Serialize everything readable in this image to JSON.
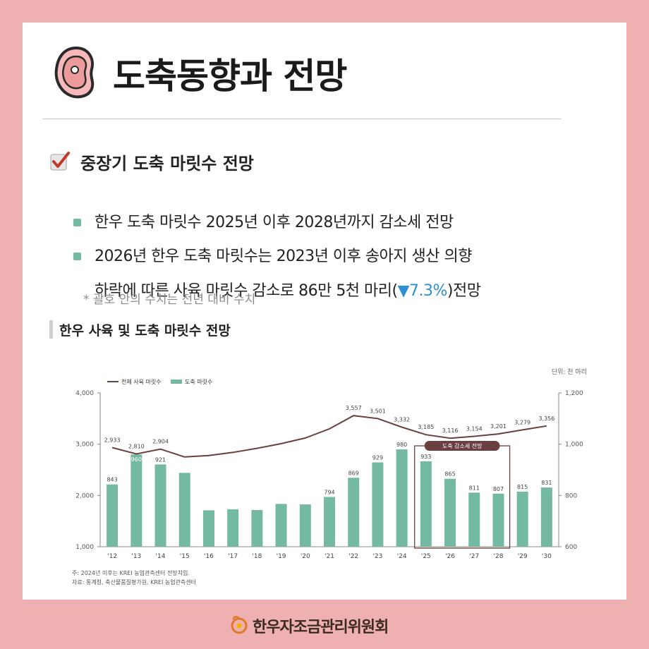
{
  "header": {
    "title": "도축동향과 전망",
    "icon": "meat-icon"
  },
  "section": {
    "title": "중장기 도축 마릿수 전망",
    "icon": "checkbox-icon"
  },
  "bullets": {
    "b1": "한우 도축 마릿수 2025년 이후 2028년까지 감소세 전망",
    "b2_line1": "2026년 한우 도축 마릿수는 2023년 이후 송아지 생산 의향",
    "b2_line2_pre": "하락에 따른 사육 마릿수 감소로 86만 5천 마리(",
    "b2_line2_pct": "▼7.3%",
    "b2_line2_post": ")전망"
  },
  "note": "* 괄호 안의 수치는 전년 대비 수치",
  "chart_title": "한우 사육 및 도축 마릿수 전망",
  "colors": {
    "background": "#eeb0b0",
    "bar": "#74b9a1",
    "line": "#6b3f3f",
    "accent_blue": "#2f8fd0",
    "bullet": "#74b9a1"
  },
  "chart_data": {
    "type": "bar",
    "unit_label": "단위: 천 마리",
    "categories": [
      "'12",
      "'13",
      "'14",
      "'15",
      "'16",
      "'17",
      "'18",
      "'19",
      "'20",
      "'21",
      "'22",
      "'23",
      "'24",
      "'25",
      "'26",
      "'27",
      "'28",
      "'29",
      "'30"
    ],
    "series": [
      {
        "name": "전체 사육 마릿수",
        "type": "line",
        "axis": "left",
        "values": [
          2933,
          2810,
          2904,
          2750,
          2780,
          2840,
          2920,
          3010,
          3120,
          3300,
          3557,
          3501,
          3332,
          3185,
          3116,
          3154,
          3201,
          3279,
          3356
        ],
        "labels": [
          "2,933",
          "2,810",
          "2,904",
          "",
          "",
          "",
          "",
          "",
          "",
          "",
          "3,557",
          "3,501",
          "3,332",
          "3,185",
          "3,116",
          "3,154",
          "3,201",
          "3,279",
          "3,356"
        ]
      },
      {
        "name": "도축 마릿수",
        "type": "bar",
        "axis": "right",
        "values": [
          843,
          960,
          921,
          888,
          742,
          746,
          743,
          767,
          765,
          794,
          869,
          929,
          980,
          933,
          865,
          811,
          807,
          815,
          831
        ],
        "labels": [
          "843",
          "960",
          "921",
          "",
          "",
          "",
          "",
          "",
          "",
          "794",
          "869",
          "929",
          "980",
          "933",
          "865",
          "811",
          "807",
          "815",
          "831"
        ]
      }
    ],
    "left_axis": {
      "ylim": [
        1000,
        4000
      ],
      "ticks": [
        "1,000",
        "2,000",
        "3,000",
        "4,000"
      ]
    },
    "right_axis": {
      "ylim": [
        600,
        1200
      ],
      "ticks": [
        "600",
        "800",
        "1,000",
        "1,200"
      ]
    },
    "legend_placement": "top-left",
    "grid": false,
    "annotation": {
      "label": "도축 감소세 전망",
      "from": "'25",
      "to": "'28"
    },
    "footnote1": "주: 2024년 이후는 KREI 농업관측센터 전망치임.",
    "footnote2": "자료: 통계청, 축산물품질평가원, KREI 농업관측센터"
  },
  "footer": {
    "org_name": "한우자조금관리위원회",
    "icon": "hanwoo-logo-icon"
  }
}
